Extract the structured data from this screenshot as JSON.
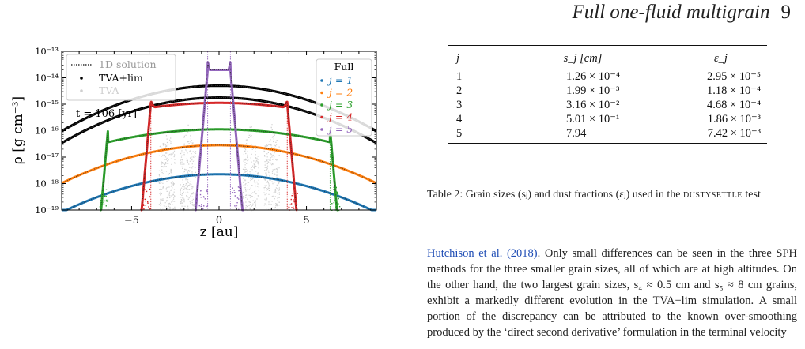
{
  "header": {
    "running_title": "Full one-fluid multigrain",
    "page_number": "9"
  },
  "chart_data": {
    "type": "line",
    "xlabel": "z [au]",
    "ylabel": "ρ [g cm⁻³]",
    "xlim": [
      -9,
      9
    ],
    "ylim_log10": [
      -19,
      -13
    ],
    "yscale": "log",
    "x_ticks": [
      -5,
      0,
      5
    ],
    "x_tick_labels": [
      "−5",
      "0",
      "5"
    ],
    "y_ticks_log10": [
      -19,
      -18,
      -17,
      -16,
      -15,
      -14,
      -13
    ],
    "y_tick_labels": [
      "10⁻¹⁹",
      "10⁻¹⁸",
      "10⁻¹⁷",
      "10⁻¹⁶",
      "10⁻¹⁵",
      "10⁻¹⁴",
      "10⁻¹³"
    ],
    "grid": false,
    "annotation": "t = 106 [yr]",
    "legend_methods": {
      "placement": "top-left",
      "entries": [
        {
          "label": "1D solution",
          "style": "dotted-line",
          "color": "#333333"
        },
        {
          "label": "TVA+lim",
          "style": "dot",
          "color": "#000000"
        },
        {
          "label": "TVA",
          "style": "dot",
          "color": "#cfcfcf"
        }
      ]
    },
    "legend_grains": {
      "placement": "top-right",
      "title": "Full",
      "entries": [
        {
          "label": "j = 1",
          "color": "#1f77b4"
        },
        {
          "label": "j = 2",
          "color": "#ff7f0e"
        },
        {
          "label": "j = 3",
          "color": "#2ca02c"
        },
        {
          "label": "j = 4",
          "color": "#d62728"
        },
        {
          "label": "j = 5",
          "color": "#9467bd"
        }
      ]
    },
    "gas_profiles": [
      {
        "peak_log10": -14.3,
        "sigma": 3.2
      },
      {
        "peak_log10": -14.75,
        "sigma": 3.2
      }
    ],
    "series": [
      {
        "name": "j = 1",
        "color": "#1f77b4",
        "peak_log10": -17.65,
        "edge": 9.5
      },
      {
        "name": "j = 2",
        "color": "#ff7f0e",
        "peak_log10": -16.55,
        "edge": 9.5
      },
      {
        "name": "j = 3",
        "color": "#2ca02c",
        "peak_log10": -15.95,
        "edge": 6.35
      },
      {
        "name": "j = 4",
        "color": "#d62728",
        "peak_log10": -14.95,
        "edge": 3.9
      },
      {
        "name": "j = 5",
        "color": "#9467bd",
        "peak_log10": -13.7,
        "edge": 0.65
      }
    ],
    "tva_blobs": [
      -3.0,
      -1.8,
      1.8,
      3.0
    ]
  },
  "table": {
    "headers": [
      "j",
      "s_j [cm]",
      "ε_j"
    ],
    "rows": [
      [
        "1",
        "1.26 × 10⁻⁴",
        "2.95 × 10⁻⁵"
      ],
      [
        "2",
        "1.99 × 10⁻³",
        "1.18 × 10⁻⁴"
      ],
      [
        "3",
        "3.16 × 10⁻²",
        "4.68 × 10⁻⁴"
      ],
      [
        "4",
        "5.01 × 10⁻¹",
        "1.86 × 10⁻³"
      ],
      [
        "5",
        "7.94",
        "7.42 × 10⁻³"
      ]
    ]
  },
  "caption": {
    "text": "Table 2: Grain sizes (sⱼ) and dust fractions (εⱼ) used in the",
    "test_name": "dustysettle",
    "suffix": "test"
  },
  "body": {
    "citation": "Hutchison et al. (2018)",
    "text": ". Only small differences can be seen in the three SPH methods for the three smaller grain sizes, all of which are at high altitudes. On the other hand, the two largest grain sizes, s₄ ≈ 0.5 cm and s₅ ≈ 8 cm grains, exhibit a markedly different evolution in the TVA+lim simulation. A small portion of the discrepancy can be attributed to the known over-smoothing produced by the ‘direct second derivative’ formulation in the terminal velocity"
  }
}
